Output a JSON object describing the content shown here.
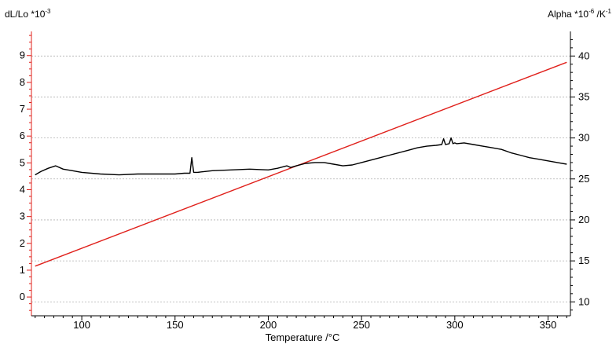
{
  "chart_data": {
    "type": "line",
    "title": "",
    "xlabel": "Temperature /°C",
    "ylabel_left": "dL/Lo *10",
    "ylabel_left_exp": "-3",
    "ylabel_right": "Alpha *10",
    "ylabel_right_exp": "-6",
    "ylabel_right_unit": " /K",
    "ylabel_right_unit_exp": "-1",
    "xlim": [
      73,
      362
    ],
    "ylim_left": [
      -0.7,
      9.9
    ],
    "ylim_right": [
      8.3,
      43.0
    ],
    "x_ticks": [
      100,
      150,
      200,
      250,
      300,
      350
    ],
    "y_ticks_left": [
      0,
      1,
      2,
      3,
      4,
      5,
      6,
      7,
      8,
      9
    ],
    "y_ticks_right": [
      10,
      15,
      20,
      25,
      30,
      35,
      40
    ],
    "grid": "horizontal",
    "series": [
      {
        "axis": "left",
        "color": "#e0201b",
        "x": [
          75,
          360
        ],
        "y": [
          1.15,
          8.75
        ]
      },
      {
        "axis": "right",
        "color": "#000000",
        "x": [
          75,
          78,
          82,
          86,
          90,
          95,
          100,
          110,
          120,
          130,
          140,
          150,
          155,
          158,
          159,
          160,
          162,
          170,
          180,
          190,
          200,
          205,
          210,
          212,
          215,
          220,
          225,
          230,
          235,
          240,
          245,
          250,
          255,
          260,
          265,
          270,
          275,
          280,
          285,
          290,
          293,
          294,
          295,
          297,
          298,
          299,
          300,
          301,
          305,
          310,
          315,
          320,
          325,
          330,
          335,
          340,
          345,
          350,
          355,
          360
        ],
        "y": [
          25.5,
          25.9,
          26.3,
          26.6,
          26.2,
          26.0,
          25.8,
          25.6,
          25.5,
          25.6,
          25.6,
          25.6,
          25.7,
          25.7,
          27.6,
          25.8,
          25.8,
          26.0,
          26.1,
          26.2,
          26.1,
          26.3,
          26.6,
          26.4,
          26.6,
          26.9,
          27.0,
          27.0,
          26.8,
          26.6,
          26.7,
          27.0,
          27.3,
          27.6,
          27.9,
          28.2,
          28.5,
          28.8,
          29.0,
          29.1,
          29.2,
          29.9,
          29.2,
          29.3,
          30.0,
          29.3,
          29.4,
          29.3,
          29.4,
          29.2,
          29.0,
          28.8,
          28.6,
          28.2,
          27.9,
          27.6,
          27.4,
          27.2,
          27.0,
          26.8
        ]
      }
    ]
  }
}
